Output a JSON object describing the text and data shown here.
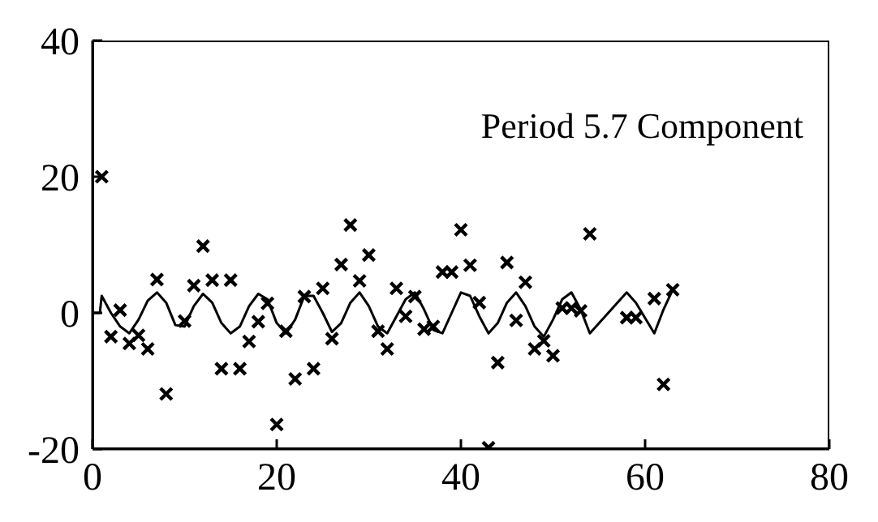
{
  "chart_data": {
    "type": "scatter",
    "title": "Period 5.7 Component",
    "xlim": [
      0,
      80
    ],
    "xticks": [
      0,
      20,
      40,
      60,
      80
    ],
    "ylim": [
      -20,
      40
    ],
    "yticks": [
      -20,
      0,
      20,
      40
    ],
    "series": [
      {
        "color": "#000000",
        "marker": "cross",
        "x": [
          1,
          2,
          3,
          4,
          5,
          6,
          7,
          8,
          10,
          11,
          12,
          13,
          14,
          15,
          16,
          17,
          18,
          19,
          20,
          21,
          22,
          23,
          24,
          25,
          26,
          27,
          28,
          29,
          30,
          31,
          32,
          33,
          34,
          35,
          36,
          37,
          38,
          39,
          40,
          41,
          42,
          43,
          44,
          45,
          46,
          47,
          48,
          49,
          50,
          51,
          52,
          53,
          54,
          58,
          59,
          61,
          62,
          63
        ],
        "values": [
          20,
          -3.5,
          0.4,
          -4.5,
          -3.3,
          -5.3,
          4.9,
          -11.9,
          -1.2,
          4,
          9.8,
          4.8,
          -8.2,
          4.8,
          -8.2,
          -4.2,
          -1.3,
          1.4,
          -16.4,
          -2.7,
          -9.7,
          2.4,
          -8.2,
          3.6,
          -3.8,
          7.1,
          12.9,
          4.7,
          8.5,
          -2.7,
          -5.3,
          3.6,
          -0.5,
          2.4,
          -2.4,
          -2,
          6,
          6,
          12.2,
          7,
          1.5,
          -19.8,
          -7.3,
          7.4,
          -1.1,
          4.5,
          -5.3,
          -4.1,
          -6.3,
          0.7,
          0.7,
          0.3,
          11.6,
          -0.7,
          -0.7,
          2.1,
          -10.5,
          3.4
        ]
      },
      {
        "type": "line",
        "color": "#000000",
        "marker": "none",
        "line_style": "solid",
        "x": [
          0,
          0.8,
          1,
          2,
          3,
          4,
          5,
          6,
          7,
          8,
          9,
          10,
          11,
          12,
          13,
          14,
          15,
          16,
          17,
          18,
          19,
          20,
          21,
          22,
          23,
          24,
          25,
          26,
          27,
          28,
          29,
          30,
          31,
          32,
          33,
          34,
          35,
          36,
          37,
          38,
          39,
          40,
          41,
          42,
          43,
          44,
          45,
          46,
          47,
          48,
          49,
          50,
          51,
          52,
          53,
          54,
          58,
          59,
          61,
          62,
          63
        ],
        "values": [
          0,
          0,
          2.5,
          0,
          -2,
          -3,
          -1,
          1.8,
          3,
          1.5,
          -1.8,
          -2,
          1,
          2.8,
          1.5,
          -1.5,
          -3,
          -2,
          1,
          2.8,
          2,
          -1.5,
          -3,
          -1,
          2.5,
          2.5,
          0,
          -2.8,
          -1.5,
          1.5,
          3,
          1,
          -2,
          -3,
          -0.5,
          2,
          3,
          0.5,
          -2.5,
          -3,
          0,
          3,
          2.5,
          -0.5,
          -3,
          -1.5,
          1.5,
          3,
          1,
          -2,
          -3.5,
          -1,
          2,
          3,
          0.5,
          -3,
          3,
          1.5,
          -3,
          0.5,
          3.4
        ]
      }
    ]
  }
}
